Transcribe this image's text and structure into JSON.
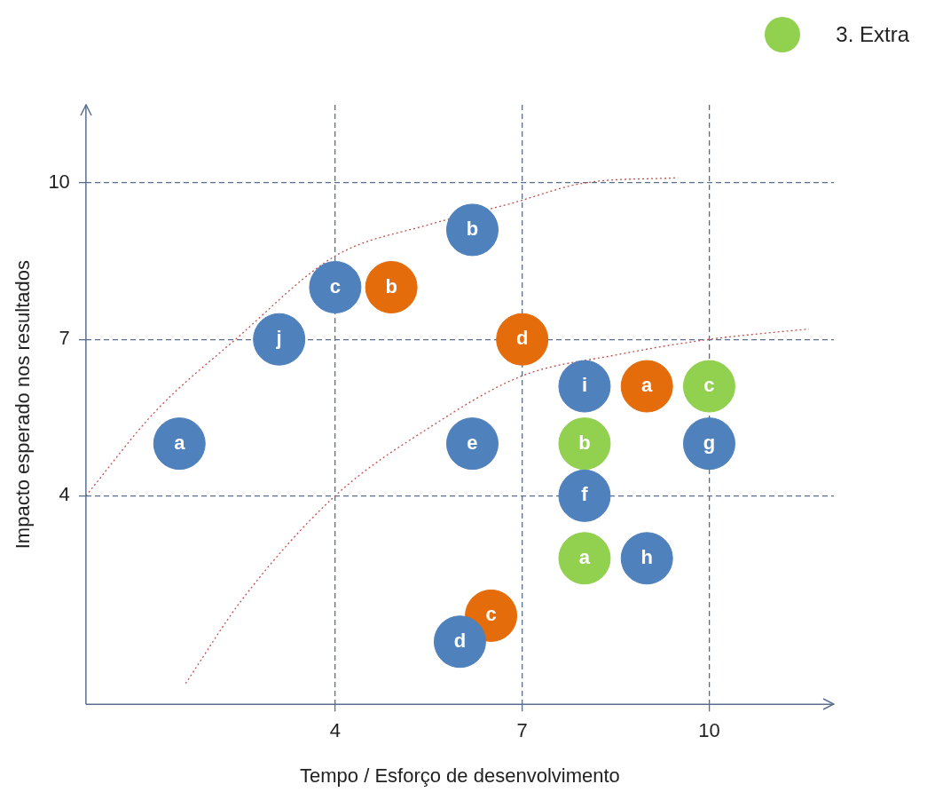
{
  "chart_data": {
    "type": "scatter",
    "xlabel": "Tempo / Esforço de desenvolvimento",
    "ylabel": "Impacto esperado nos resultados",
    "xlim": [
      0,
      12
    ],
    "xticks": [
      4,
      7,
      10
    ],
    "ylim": [
      0,
      11.5
    ],
    "yticks": [
      4,
      7,
      10
    ],
    "grid": true,
    "legend": "top right",
    "marker": "circle",
    "series": [
      {
        "color": "#4f81bd",
        "x": [
          1.5,
          3.1,
          4,
          6.2,
          6.2,
          6.0,
          8,
          8,
          9,
          10
        ],
        "values": [
          5,
          7,
          8,
          9.1,
          5,
          1.2,
          6.1,
          4,
          2.8,
          5
        ]
      },
      {
        "color": "#e46c0a",
        "x": [
          4.9,
          7,
          9,
          6.5
        ],
        "values": [
          8,
          7,
          6.1,
          1.7
        ]
      },
      {
        "name": "3. Extra",
        "color": "#92d050",
        "x": [
          8,
          10,
          8
        ],
        "values": [
          5,
          6.1,
          2.8
        ]
      },
      {
        "type": "line",
        "line_style": "dotted",
        "marker": "none",
        "color": "#c0504d",
        "x": [
          0,
          1.1,
          2.4,
          4,
          5.5,
          6.8,
          8,
          9.5
        ],
        "values": [
          4,
          5.6,
          7,
          8.6,
          9.2,
          9.6,
          10,
          10.1
        ]
      },
      {
        "type": "line",
        "line_style": "dotted",
        "marker": "none",
        "color": "#c0504d",
        "x": [
          1.6,
          2.5,
          4,
          5.5,
          7,
          8.5,
          10,
          11.6
        ],
        "values": [
          0.4,
          2.0,
          4,
          5.3,
          6.3,
          6.7,
          7,
          7.2
        ]
      }
    ],
    "annotations": [
      {
        "text": "a",
        "x": 1.5,
        "y": 5
      },
      {
        "text": "j",
        "x": 3.1,
        "y": 7
      },
      {
        "text": "c",
        "x": 4,
        "y": 8
      },
      {
        "text": "b",
        "x": 6.2,
        "y": 9.1
      },
      {
        "text": "e",
        "x": 6.2,
        "y": 5
      },
      {
        "text": "d",
        "x": 6.0,
        "y": 1.2
      },
      {
        "text": "i",
        "x": 8,
        "y": 6.1
      },
      {
        "text": "f",
        "x": 8,
        "y": 4
      },
      {
        "text": "h",
        "x": 9,
        "y": 2.8
      },
      {
        "text": "g",
        "x": 10,
        "y": 5
      },
      {
        "text": "b",
        "x": 4.9,
        "y": 8
      },
      {
        "text": "d",
        "x": 7,
        "y": 7
      },
      {
        "text": "a",
        "x": 9,
        "y": 6.1
      },
      {
        "text": "c",
        "x": 6.5,
        "y": 1.7
      },
      {
        "text": "b",
        "x": 8,
        "y": 5
      },
      {
        "text": "c",
        "x": 10,
        "y": 6.1
      },
      {
        "text": "a",
        "x": 8,
        "y": 2.8
      }
    ]
  }
}
